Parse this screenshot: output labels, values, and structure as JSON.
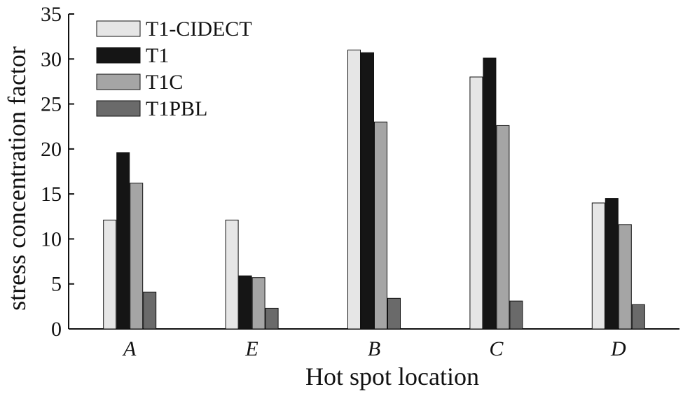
{
  "chart_data": {
    "type": "bar",
    "title": "",
    "xlabel": "Hot spot location",
    "ylabel": "stress concentration factor",
    "categories": [
      "A",
      "E",
      "B",
      "C",
      "D"
    ],
    "series": [
      {
        "name": "T1-CIDECT",
        "values": [
          12.1,
          12.1,
          31.0,
          28.0,
          14.0
        ],
        "color": "#e6e6e6"
      },
      {
        "name": "T1",
        "values": [
          19.6,
          5.9,
          30.7,
          30.1,
          14.5
        ],
        "color": "#151515"
      },
      {
        "name": "T1C",
        "values": [
          16.2,
          5.7,
          23.0,
          22.6,
          11.6
        ],
        "color": "#a5a5a5"
      },
      {
        "name": "T1PBL",
        "values": [
          4.1,
          2.3,
          3.4,
          3.1,
          2.7
        ],
        "color": "#6a6a6a"
      }
    ],
    "ylim": [
      0,
      35
    ],
    "yticks": [
      0,
      5,
      10,
      15,
      20,
      25,
      30,
      35
    ],
    "grid": false,
    "legend_position": "top-left"
  }
}
